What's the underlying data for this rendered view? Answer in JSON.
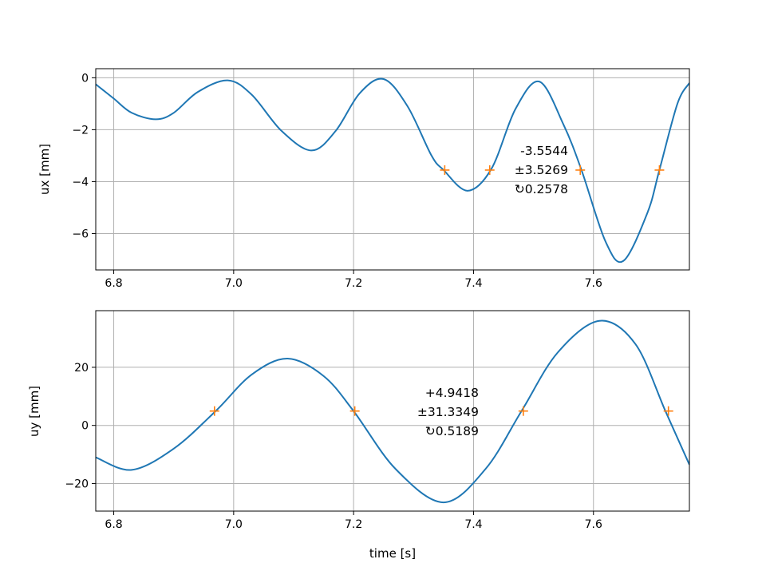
{
  "chart_data": [
    {
      "type": "line",
      "ylabel": "ux [mm]",
      "xlabel": "",
      "xlim": [
        6.77,
        7.76
      ],
      "ylim": [
        -7.4,
        0.35
      ],
      "xticks": [
        "6.8",
        "7.0",
        "7.2",
        "7.4",
        "7.6"
      ],
      "yticks": [
        "0",
        "−2",
        "−4",
        "−6"
      ],
      "grid": true,
      "line_color": "#1f77b4",
      "marker_color": "#ff7f0e",
      "series": [
        {
          "x": [
            6.77,
            6.8,
            6.83,
            6.87,
            6.9,
            6.94,
            6.99,
            7.03,
            7.08,
            7.13,
            7.17,
            7.21,
            7.25,
            7.29,
            7.33,
            7.35,
            7.39,
            7.43,
            7.47,
            7.51,
            7.55,
            7.58,
            7.62,
            7.65,
            7.69,
            7.71,
            7.74,
            7.76
          ],
          "y": [
            -0.25,
            -0.8,
            -1.35,
            -1.6,
            -1.35,
            -0.55,
            -0.1,
            -0.65,
            -2.05,
            -2.8,
            -2.05,
            -0.6,
            -0.05,
            -1.1,
            -3.0,
            -3.55,
            -4.35,
            -3.5,
            -1.2,
            -0.15,
            -1.8,
            -3.55,
            -6.3,
            -7.05,
            -5.2,
            -3.55,
            -1.0,
            -0.2
          ]
        }
      ],
      "markers": {
        "x": [
          7.352,
          7.427,
          7.578,
          7.71
        ],
        "y": [
          -3.5544,
          -3.5544,
          -3.5544,
          -3.5544
        ]
      },
      "annotation": [
        "-3.5544",
        "±3.5269",
        "↻0.2578"
      ]
    },
    {
      "type": "line",
      "ylabel": "uy [mm]",
      "xlabel": "time [s]",
      "xlim": [
        6.77,
        7.76
      ],
      "ylim": [
        -29.5,
        39.5
      ],
      "xticks": [
        "6.8",
        "7.0",
        "7.2",
        "7.4",
        "7.6"
      ],
      "yticks": [
        "20",
        "0",
        "−20"
      ],
      "grid": true,
      "line_color": "#1f77b4",
      "marker_color": "#ff7f0e",
      "series": [
        {
          "x": [
            6.77,
            6.83,
            6.9,
            6.97,
            7.03,
            7.09,
            7.15,
            7.2,
            7.27,
            7.35,
            7.42,
            7.48,
            7.54,
            7.61,
            7.67,
            7.72,
            7.76
          ],
          "y": [
            -11.0,
            -15.3,
            -8.0,
            4.94,
            17.5,
            23.0,
            17.0,
            4.94,
            -15.0,
            -26.5,
            -15.0,
            4.94,
            25.0,
            36.0,
            28.0,
            4.94,
            -13.5
          ]
        }
      ],
      "markers": {
        "x": [
          6.968,
          7.202,
          7.483,
          7.725
        ],
        "y": [
          4.9418,
          4.9418,
          4.9418,
          4.9418
        ]
      },
      "annotation": [
        "+4.9418",
        "±31.3349",
        "↻0.5189"
      ]
    }
  ]
}
